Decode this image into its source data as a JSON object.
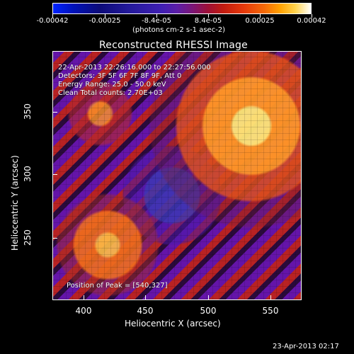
{
  "colorbar": {
    "ticks": [
      "-0.00042",
      "-0.00025",
      "-8.4e-05",
      "8.4e-05",
      "0.00025",
      "0.00042"
    ],
    "units": "(photons cm-2 s-1 asec-2)"
  },
  "plot": {
    "title": "Reconstructed RHESSI Image",
    "info": {
      "time_range": "22-Apr-2013 22:26:16.000 to 22:27:56.000",
      "detectors": "Detectors: 3F 5F 6F 7F 8F 9F, Att 0",
      "energy_range": "Energy Range: 25.0 - 50.0 keV",
      "clean_counts": "Clean     Total counts: 2.70E+03"
    },
    "peak": "Position of Peak = [540,327]",
    "x_ticks": [
      "400",
      "450",
      "500",
      "550"
    ],
    "y_ticks": [
      "350",
      "300",
      "250"
    ],
    "x_label": "Heliocentric X (arcsec)",
    "y_label": "Heliocentric Y (arcsec)"
  },
  "footer": {
    "timestamp": "23-Apr-2013 02:17"
  }
}
